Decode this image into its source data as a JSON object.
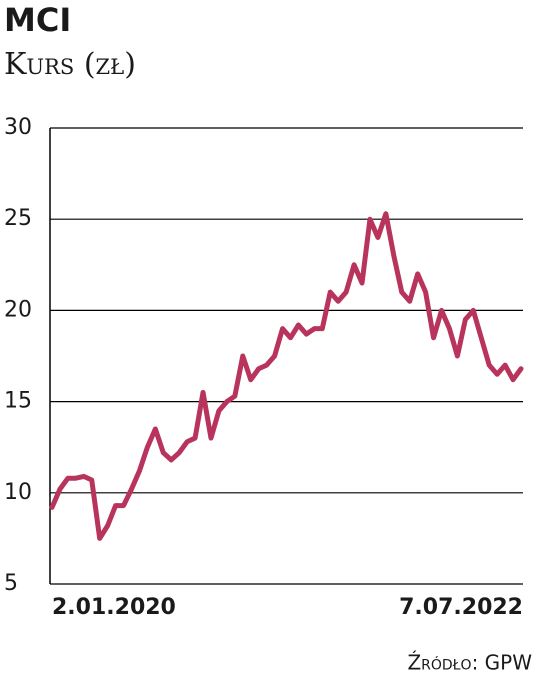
{
  "chart_data": {
    "type": "line",
    "title": "MCI",
    "subtitle": "Kurs (zł)",
    "source": "Źródło: GPW",
    "categories": [
      "2.01.2020",
      null,
      null,
      null,
      null,
      null,
      null,
      null,
      null,
      null,
      null,
      null,
      null,
      null,
      null,
      null,
      null,
      null,
      null,
      null,
      null,
      null,
      null,
      null,
      null,
      null,
      null,
      null,
      null,
      null,
      null,
      null,
      null,
      null,
      null,
      null,
      null,
      null,
      null,
      null,
      null,
      null,
      null,
      null,
      null,
      null,
      null,
      null,
      null,
      null,
      null,
      null,
      null,
      null,
      null,
      null,
      null,
      null,
      null,
      "7.07.2022"
    ],
    "series": [
      {
        "name": "MCI",
        "color": "#b8345c",
        "values": [
          9.2,
          10.2,
          10.8,
          10.8,
          10.9,
          10.7,
          7.5,
          8.2,
          9.3,
          9.3,
          10.2,
          11.2,
          12.5,
          13.5,
          12.2,
          11.8,
          12.2,
          12.8,
          13,
          15.5,
          13,
          14.5,
          15,
          15.3,
          17.5,
          16.2,
          16.8,
          17,
          17.5,
          19,
          18.5,
          19.2,
          18.7,
          19,
          19,
          21,
          20.5,
          21,
          22.5,
          21.5,
          25,
          24,
          25.3,
          23,
          21,
          20.5,
          22,
          21,
          18.5,
          20,
          19,
          17.5,
          19.5,
          20,
          18.5,
          17,
          16.5,
          17,
          16.2,
          16.8
        ]
      }
    ],
    "ylim": [
      5,
      30
    ],
    "yticks": [
      5,
      10,
      15,
      20,
      25,
      30
    ],
    "grid": true
  }
}
